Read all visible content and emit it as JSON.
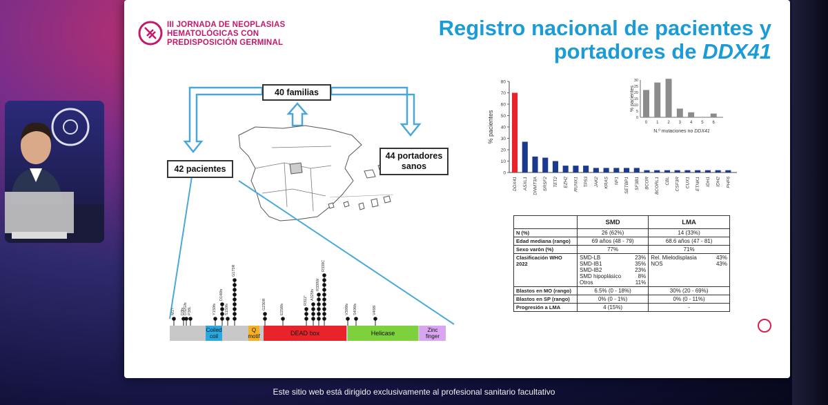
{
  "logo": {
    "icon": "dna-circle-icon",
    "lines": [
      "III JORNADA DE NEOPLASIAS",
      "HEMATOLÓGICAS CON",
      "PREDISPOSICIÓN GERMINAL"
    ]
  },
  "title": {
    "line1": "Registro nacional de pacientes y",
    "line2_prefix": "portadores de ",
    "line2_gene": "DDX41"
  },
  "flow": {
    "familias": "40 familias",
    "pacientes": "42 pacientes",
    "portadores_line1": "44 portadores",
    "portadores_line2": "sanos"
  },
  "protein": {
    "domains": [
      {
        "label": "Coiled coil",
        "color": "#29a9e0"
      },
      {
        "label": "Q motif",
        "color": "#f7b022"
      },
      {
        "label": "DEAD box",
        "color": "#e8242a"
      },
      {
        "label": "Helicase",
        "color": "#7cd13c"
      },
      {
        "label": "Zinc finger",
        "color": "#d8a6f0"
      }
    ],
    "mutations": [
      {
        "label": "M1?",
        "dots": 1
      },
      {
        "label": "D3fs",
        "dots": 1
      },
      {
        "label": "D32Gfs",
        "dots": 1
      },
      {
        "label": "P38L",
        "dots": 1
      },
      {
        "label": "Y150fs",
        "dots": 1
      },
      {
        "label": "D140fs",
        "dots": 4
      },
      {
        "label": "S150fs",
        "dots": 1
      },
      {
        "label": "G173R",
        "dots": 9
      },
      {
        "label": "G230R",
        "dots": 2
      },
      {
        "label": "E256fs",
        "dots": 1
      },
      {
        "label": "R311*",
        "dots": 3
      },
      {
        "label": "A325fs",
        "dots": 4
      },
      {
        "label": "R339W",
        "dots": 6
      },
      {
        "label": "R339C",
        "dots": 10
      },
      {
        "label": "V398fs",
        "dots": 1
      },
      {
        "label": "S406fs",
        "dots": 1
      },
      {
        "label": "V468I",
        "dots": 1
      }
    ]
  },
  "chart_data": [
    {
      "type": "bar",
      "ylabel": "% pacientes",
      "categories": [
        "DDX41",
        "ASXL1",
        "DNMT3A",
        "SRSF2",
        "TET2",
        "EZH2",
        "RUNX1",
        "TP53",
        "JAK2",
        "KRAS",
        "NF1",
        "SETBP1",
        "SF3B1",
        "BCOR",
        "BCORL1",
        "CBL",
        "CSF3R",
        "CUX1",
        "ETNK1",
        "IDH1",
        "IDH2",
        "PHF6"
      ],
      "values": [
        70,
        27,
        14,
        13,
        10,
        6,
        6,
        6,
        4,
        4,
        4,
        4,
        4,
        2,
        2,
        2,
        2,
        2,
        2,
        2,
        2,
        2
      ],
      "highlight_color": "#e8242a",
      "bar_color": "#1b3a8c",
      "ylim": [
        0,
        80
      ],
      "yticks": [
        0,
        10,
        20,
        30,
        40,
        50,
        60,
        70,
        80
      ]
    },
    {
      "type": "bar",
      "ylabel": "% pacientes",
      "xlabel_prefix": "N.º mutaciones no ",
      "xlabel_gene": "DDX41",
      "categories": [
        "0",
        "1",
        "2",
        "3",
        "4",
        "5",
        "6"
      ],
      "values": [
        22,
        28,
        31,
        7,
        4,
        0,
        3
      ],
      "bar_color": "#8c8c8c",
      "ylim": [
        0,
        30
      ],
      "yticks": [
        0,
        5,
        10,
        15,
        20,
        25,
        30
      ]
    }
  ],
  "table": {
    "headers": [
      "",
      "SMD",
      "LMA"
    ],
    "rows": [
      {
        "label": "N (%)",
        "smd": "26 (62%)",
        "lma": "14 (33%)"
      },
      {
        "label": "Edad mediana (rango)",
        "smd": "69 años (48 - 79)",
        "lma": "68.6 años (47 - 81)"
      },
      {
        "label": "Sexo varón (%)",
        "smd": "77%",
        "lma": "71%"
      }
    ],
    "who_label": "Clasificación WHO 2022",
    "who_smd": [
      [
        "SMD-LB",
        "23%"
      ],
      [
        "SMD-IB1",
        "35%"
      ],
      [
        "SMD-IB2",
        "23%"
      ],
      [
        "SMD hipoplásico",
        "8%"
      ],
      [
        "Otros",
        "11%"
      ]
    ],
    "who_lma": [
      [
        "Rel. Mielodisplasia",
        "43%"
      ],
      [
        "NOS",
        "43%"
      ]
    ],
    "rows_after": [
      {
        "label": "Blastos en MO (rango)",
        "smd": "6.5% (0 - 18%)",
        "lma": "30% (20 - 69%)"
      },
      {
        "label": "Blastos en SP (rango)",
        "smd": "0% (0 - 1%)",
        "lma": "0% (0 - 11%)"
      },
      {
        "label": "Progresión a LMA",
        "smd": "4 (15%)",
        "lma": "-"
      }
    ]
  },
  "footer": "Este sitio web está dirigido exclusivamente al profesional sanitario facultativo"
}
